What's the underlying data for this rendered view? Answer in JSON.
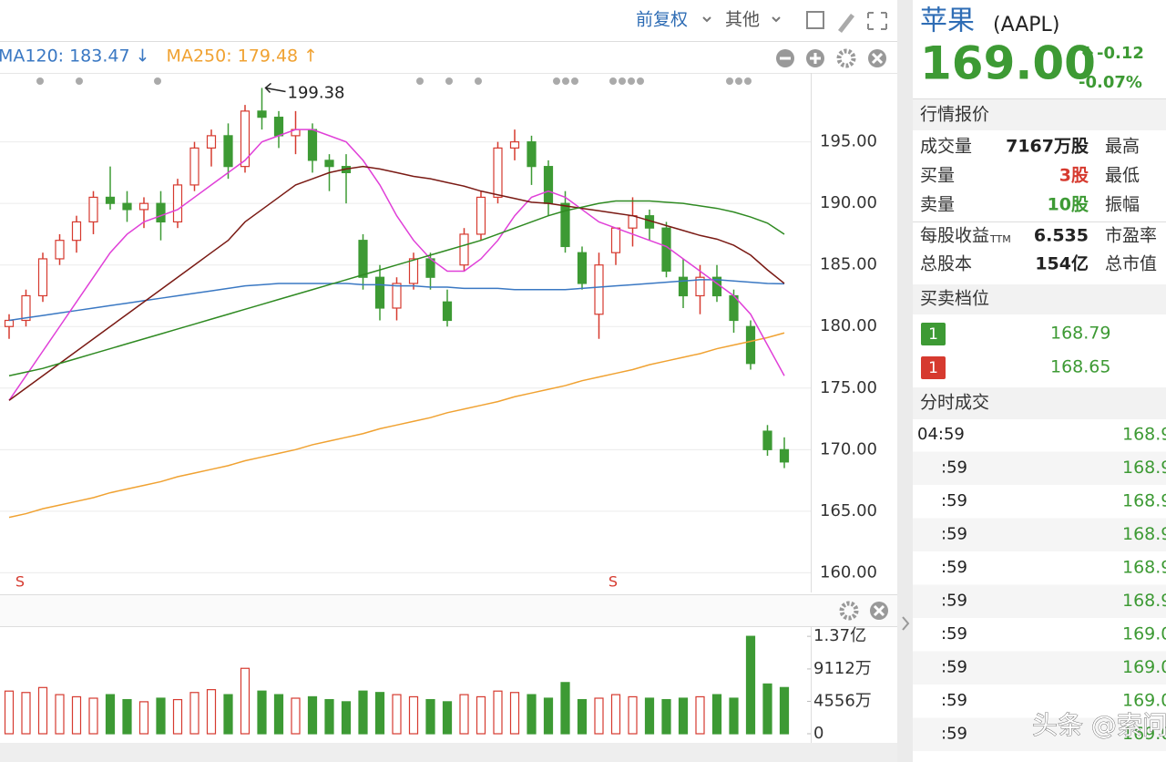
{
  "toolbar": {
    "adjust": "前复权",
    "other": "其他"
  },
  "chart_data": {
    "type": "candlestick",
    "candles": [
      [
        180,
        181,
        179,
        180.5
      ],
      [
        180.5,
        183,
        180,
        182.5
      ],
      [
        182.5,
        186,
        182,
        185.5
      ],
      [
        185.5,
        187.5,
        185,
        187
      ],
      [
        187,
        189,
        186,
        188.5
      ],
      [
        188.5,
        191,
        187.5,
        190.5
      ],
      [
        190.5,
        193,
        189.5,
        190
      ],
      [
        190,
        191,
        188.5,
        189.5
      ],
      [
        189.5,
        190.5,
        188,
        190
      ],
      [
        190,
        191,
        187,
        188.5
      ],
      [
        188.5,
        192,
        188,
        191.5
      ],
      [
        191.5,
        195,
        191,
        194.5
      ],
      [
        194.5,
        196,
        193,
        195.5
      ],
      [
        195.5,
        196.5,
        192,
        193
      ],
      [
        193,
        198,
        192.5,
        197.5
      ],
      [
        197.5,
        199.38,
        196,
        197
      ],
      [
        197,
        197.5,
        194.5,
        195.5
      ],
      [
        195.5,
        197.5,
        194,
        196
      ],
      [
        196,
        196.5,
        192.5,
        193.5
      ],
      [
        193.5,
        194,
        191,
        193
      ],
      [
        193,
        194,
        190,
        192.5
      ],
      [
        187,
        187.5,
        183,
        184
      ],
      [
        184,
        185,
        180.5,
        181.5
      ],
      [
        181.5,
        184,
        180.5,
        183.5
      ],
      [
        183.5,
        186,
        183,
        185.5
      ],
      [
        185.5,
        186,
        183,
        184
      ],
      [
        182,
        183,
        180,
        180.5
      ],
      [
        185,
        188,
        184.5,
        187.5
      ],
      [
        187.5,
        191,
        187,
        190.5
      ],
      [
        190.5,
        195,
        190,
        194.5
      ],
      [
        194.5,
        196,
        193.5,
        195
      ],
      [
        195,
        195.5,
        191.5,
        193
      ],
      [
        193,
        193.5,
        189,
        190
      ],
      [
        190,
        191,
        186,
        186.5
      ],
      [
        186,
        186.5,
        183,
        183.5
      ],
      [
        181,
        186,
        179,
        185
      ],
      [
        186,
        188,
        185,
        188
      ],
      [
        188,
        190.5,
        186.5,
        189
      ],
      [
        189,
        189.5,
        187,
        188
      ],
      [
        188,
        188.5,
        184,
        184.5
      ],
      [
        184,
        185.5,
        181.5,
        182.5
      ],
      [
        182.5,
        185,
        181,
        184
      ],
      [
        184,
        185,
        182,
        182.5
      ],
      [
        182.5,
        183,
        179.5,
        180.5
      ],
      [
        180,
        180.5,
        176.5,
        177
      ],
      [
        171.5,
        172,
        169.5,
        170
      ],
      [
        170,
        171,
        168.5,
        169
      ]
    ],
    "up_color": "#d63a2f",
    "down_color": "#3d9a34",
    "max_label": 199.38,
    "series": [
      {
        "label": "MA120: 183.47 ↓",
        "color": "#3a78c3",
        "values": [
          180.5,
          180.7,
          180.9,
          181.1,
          181.3,
          181.5,
          181.7,
          181.9,
          182.1,
          182.3,
          182.5,
          182.7,
          182.9,
          183.1,
          183.3,
          183.4,
          183.5,
          183.5,
          183.5,
          183.5,
          183.5,
          183.4,
          183.4,
          183.3,
          183.3,
          183.2,
          183.2,
          183.1,
          183.1,
          183.1,
          183.0,
          183.0,
          183.0,
          183.0,
          183.1,
          183.2,
          183.3,
          183.4,
          183.5,
          183.6,
          183.7,
          183.8,
          183.8,
          183.7,
          183.6,
          183.5,
          183.47
        ]
      },
      {
        "label": "MA250: 179.48 ↑",
        "color": "#f0a232",
        "values": [
          164.5,
          164.8,
          165.2,
          165.5,
          165.8,
          166.1,
          166.5,
          166.8,
          167.1,
          167.4,
          167.8,
          168.1,
          168.4,
          168.7,
          169.1,
          169.4,
          169.7,
          170.0,
          170.4,
          170.7,
          171.0,
          171.3,
          171.7,
          172.0,
          172.3,
          172.6,
          173.0,
          173.3,
          173.6,
          173.9,
          174.3,
          174.6,
          174.9,
          175.2,
          175.6,
          175.9,
          176.2,
          176.5,
          176.9,
          177.2,
          177.5,
          177.8,
          178.2,
          178.5,
          178.8,
          179.1,
          179.48
        ]
      },
      {
        "color": "#e040d8",
        "values": [
          174,
          176,
          178,
          180,
          182,
          184,
          186,
          187.5,
          188.5,
          189,
          189.5,
          190.5,
          191.5,
          192.5,
          193.5,
          195,
          195.5,
          196,
          196,
          195.5,
          195,
          193.5,
          191.5,
          189,
          187,
          185.5,
          184.5,
          184.5,
          185.5,
          187,
          189,
          190.5,
          191,
          190.5,
          189.5,
          188.5,
          188,
          187.5,
          187,
          186.5,
          185.5,
          184.5,
          183.5,
          182.5,
          181,
          178.5,
          176
        ]
      },
      {
        "color": "#7a1a14",
        "values": [
          174,
          175,
          176,
          177,
          178,
          179,
          180,
          181,
          182,
          183,
          184,
          185,
          186,
          187,
          188.5,
          189.5,
          190.5,
          191.5,
          192,
          192.5,
          192.8,
          193,
          192.8,
          192.5,
          192.2,
          192,
          191.7,
          191.4,
          191,
          190.7,
          190.4,
          190.1,
          190,
          189.8,
          189.6,
          189.4,
          189.2,
          189,
          188.6,
          188.2,
          187.8,
          187.4,
          187.1,
          186.6,
          185.8,
          184.6,
          183.5
        ]
      },
      {
        "color": "#2f8a22",
        "values": [
          176,
          176.3,
          176.6,
          177,
          177.4,
          177.8,
          178.2,
          178.6,
          179,
          179.4,
          179.8,
          180.2,
          180.6,
          181,
          181.4,
          181.8,
          182.2,
          182.6,
          183,
          183.4,
          183.8,
          184.2,
          184.6,
          185,
          185.4,
          185.8,
          186.2,
          186.6,
          187,
          187.5,
          188,
          188.5,
          189,
          189.4,
          189.7,
          190,
          190.2,
          190.2,
          190.2,
          190.1,
          190,
          189.8,
          189.6,
          189.3,
          188.9,
          188.4,
          187.5
        ]
      }
    ],
    "ylim": [
      158.4,
      200.6
    ],
    "yticks": [
      {
        "value": 160,
        "label": "160.00"
      },
      {
        "value": 165,
        "label": "165.00"
      },
      {
        "value": 170,
        "label": "170.00"
      },
      {
        "value": 175,
        "label": "175.00"
      },
      {
        "value": 180,
        "label": "180.00"
      },
      {
        "value": 185,
        "label": "185.00"
      },
      {
        "value": 190,
        "label": "190.00"
      },
      {
        "value": 195,
        "label": "195.00"
      }
    ],
    "grid": true,
    "signals": [
      "S",
      "S"
    ],
    "volume": {
      "values": [
        60000000,
        58000000,
        65000000,
        55000000,
        52000000,
        50000000,
        55000000,
        48000000,
        45000000,
        50000000,
        48000000,
        58000000,
        62000000,
        55000000,
        92000000,
        60000000,
        55000000,
        50000000,
        52000000,
        48000000,
        45000000,
        60000000,
        58000000,
        55000000,
        52000000,
        48000000,
        45000000,
        55000000,
        52000000,
        60000000,
        58000000,
        55000000,
        50000000,
        72000000,
        48000000,
        50000000,
        55000000,
        52000000,
        50000000,
        48000000,
        50000000,
        52000000,
        55000000,
        50000000,
        137000000,
        70000000,
        65000000
      ],
      "ylim": [
        0,
        150000000
      ],
      "yticks": [
        0,
        {
          "value": 45560000,
          "label": "4556万"
        },
        {
          "value": 91120000,
          "label": "9112万"
        },
        {
          "value": 137000000,
          "label": "1.37亿"
        }
      ]
    }
  },
  "quote": {
    "name": "苹果",
    "symbol": "(AAPL)",
    "price": "169.00",
    "change": "-0.12",
    "change_pct": "-0.07%",
    "header": "行情报价",
    "rows": [
      {
        "label": "成交量",
        "value": "7167万股",
        "label2": "最高"
      },
      {
        "label": "买量",
        "value": "3股",
        "label2": "最低"
      },
      {
        "label": "卖量",
        "value": "10股",
        "label2": "振幅"
      },
      {
        "label": "每股收益",
        "sub": "TTM",
        "value": "6.535",
        "label2": "市盈率"
      },
      {
        "label": "总股本",
        "value": "154亿",
        "label2": "总市值"
      }
    ]
  },
  "book": {
    "header": "买卖档位",
    "levels": [
      {
        "level": "1",
        "price": "168.79"
      },
      {
        "level": "1",
        "price": "168.65"
      }
    ]
  },
  "ticks": {
    "header": "分时成交",
    "rows": [
      [
        "04:59",
        "168.9"
      ],
      [
        ":59",
        "168.9"
      ],
      [
        ":59",
        "168.9"
      ],
      [
        ":59",
        "168.9"
      ],
      [
        ":59",
        "168.9"
      ],
      [
        ":59",
        "168.9"
      ],
      [
        ":59",
        "169.0"
      ],
      [
        ":59",
        "169.0"
      ],
      [
        ":59",
        "169.0"
      ],
      [
        ":59",
        "169.0"
      ]
    ]
  },
  "watermark": "头条 @索问思"
}
